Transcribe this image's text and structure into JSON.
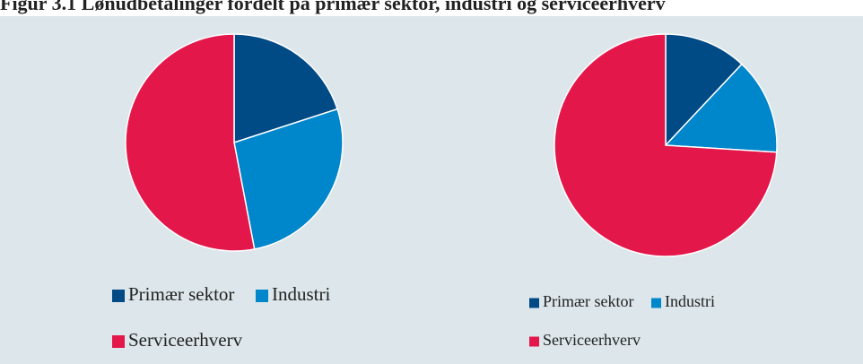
{
  "title": "Figur 3.1 Lønudbetalinger fordelt på primær sektor, industri og serviceerhverv",
  "chart_data": [
    {
      "type": "pie",
      "categories": [
        "Primær sektor",
        "Industri",
        "Serviceerhverv"
      ],
      "values": [
        20,
        27,
        53
      ],
      "colors": [
        "#004a85",
        "#0086cb",
        "#e4174b"
      ]
    },
    {
      "type": "pie",
      "categories": [
        "Primær sektor",
        "Industri",
        "Serviceerhverv"
      ],
      "values": [
        12,
        14,
        74
      ],
      "colors": [
        "#004a85",
        "#0086cb",
        "#e4174b"
      ]
    }
  ]
}
